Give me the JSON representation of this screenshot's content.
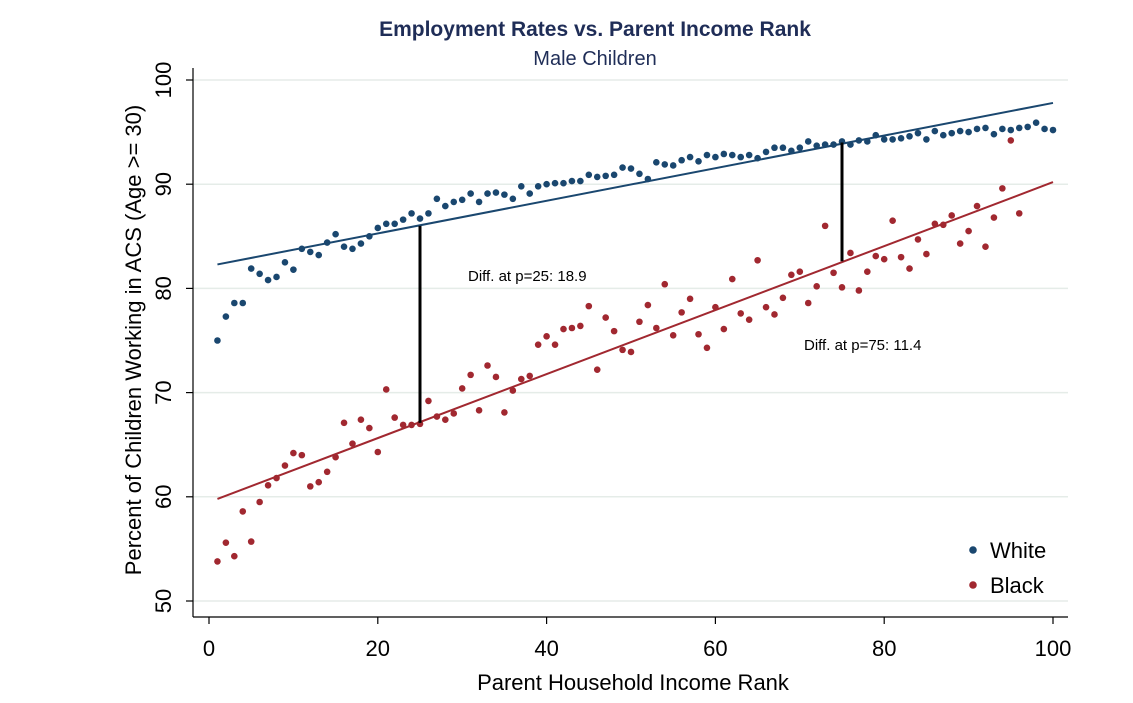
{
  "chart_data": {
    "type": "scatter",
    "title": "Employment Rates vs. Parent Income Rank",
    "subtitle": "Male Children",
    "xlabel": "Parent Household Income Rank",
    "ylabel": "Percent of Children Working in ACS (Age >= 30)",
    "xlim": [
      0,
      100
    ],
    "ylim": [
      50,
      100
    ],
    "xticks": [
      0,
      20,
      40,
      60,
      80,
      100
    ],
    "yticks": [
      50,
      60,
      70,
      80,
      90,
      100
    ],
    "grid": true,
    "legend_position": "bottom-right",
    "annotations": [
      {
        "text": "Diff. at p=25: 18.9",
        "x": 25,
        "y": 78,
        "from": 67.1,
        "to": 86.0
      },
      {
        "text": "Diff. at p=75: 11.4",
        "x": 75,
        "y": 72,
        "from": 82.6,
        "to": 94.0
      }
    ],
    "series": [
      {
        "name": "White",
        "color": "#1a476f",
        "fit": [
          [
            1,
            82.3
          ],
          [
            100,
            97.8
          ]
        ],
        "x": [
          1,
          2,
          3,
          4,
          5,
          6,
          7,
          8,
          9,
          10,
          11,
          12,
          13,
          14,
          15,
          16,
          17,
          18,
          19,
          20,
          21,
          22,
          23,
          24,
          25,
          26,
          27,
          28,
          29,
          30,
          31,
          32,
          33,
          34,
          35,
          36,
          37,
          38,
          39,
          40,
          41,
          42,
          43,
          44,
          45,
          46,
          47,
          48,
          49,
          50,
          51,
          52,
          53,
          54,
          55,
          56,
          57,
          58,
          59,
          60,
          61,
          62,
          63,
          64,
          65,
          66,
          67,
          68,
          69,
          70,
          71,
          72,
          73,
          74,
          75,
          76,
          77,
          78,
          79,
          80,
          81,
          82,
          83,
          84,
          85,
          86,
          87,
          88,
          89,
          90,
          91,
          92,
          93,
          94,
          95,
          96,
          97,
          98,
          99,
          100
        ],
        "y": [
          75.0,
          77.3,
          78.6,
          78.6,
          81.9,
          81.4,
          80.8,
          81.1,
          82.5,
          81.8,
          83.8,
          83.5,
          83.2,
          84.4,
          85.2,
          84.0,
          83.8,
          84.3,
          85.0,
          85.8,
          86.2,
          86.2,
          86.6,
          87.2,
          86.7,
          87.2,
          88.6,
          87.9,
          88.3,
          88.5,
          89.1,
          88.3,
          89.1,
          89.2,
          89.0,
          88.6,
          89.8,
          89.1,
          89.8,
          90.0,
          90.1,
          90.1,
          90.3,
          90.3,
          90.9,
          90.7,
          90.8,
          90.9,
          91.6,
          91.5,
          91.0,
          90.5,
          92.1,
          91.9,
          91.8,
          92.3,
          92.6,
          92.2,
          92.8,
          92.6,
          92.9,
          92.8,
          92.6,
          92.8,
          92.5,
          93.1,
          93.5,
          93.5,
          93.2,
          93.5,
          94.1,
          93.7,
          93.8,
          93.8,
          94.1,
          93.8,
          94.2,
          94.1,
          94.7,
          94.3,
          94.3,
          94.4,
          94.6,
          94.9,
          94.3,
          95.1,
          94.7,
          94.9,
          95.1,
          95.0,
          95.3,
          95.4,
          94.8,
          95.3,
          95.2,
          95.4,
          95.5,
          95.9,
          95.3,
          95.2
        ]
      },
      {
        "name": "Black",
        "color": "#a12830",
        "fit": [
          [
            1,
            59.8
          ],
          [
            100,
            90.2
          ]
        ],
        "x": [
          1,
          2,
          3,
          4,
          5,
          6,
          7,
          8,
          9,
          10,
          11,
          12,
          13,
          14,
          15,
          16,
          17,
          18,
          19,
          20,
          21,
          22,
          23,
          24,
          25,
          26,
          27,
          28,
          29,
          30,
          31,
          32,
          33,
          34,
          35,
          36,
          37,
          38,
          39,
          40,
          41,
          42,
          43,
          44,
          45,
          46,
          47,
          48,
          49,
          50,
          51,
          52,
          53,
          54,
          55,
          56,
          57,
          58,
          59,
          60,
          61,
          62,
          63,
          64,
          65,
          66,
          67,
          68,
          69,
          70,
          71,
          72,
          73,
          74,
          75,
          76,
          77,
          78,
          79,
          80,
          81,
          82,
          83,
          84,
          85,
          86,
          87,
          88,
          89,
          90,
          91,
          92,
          93,
          94,
          95,
          96
        ],
        "y": [
          53.8,
          55.6,
          54.3,
          58.6,
          55.7,
          59.5,
          61.1,
          61.8,
          63.0,
          64.2,
          64.0,
          61.0,
          61.4,
          62.4,
          63.8,
          67.1,
          65.1,
          67.4,
          66.6,
          64.3,
          70.3,
          67.6,
          66.9,
          66.9,
          67.0,
          69.2,
          67.7,
          67.4,
          68.0,
          70.4,
          71.7,
          68.3,
          72.6,
          71.5,
          68.1,
          70.2,
          71.3,
          71.6,
          74.6,
          75.4,
          74.6,
          76.1,
          76.2,
          76.4,
          78.3,
          72.2,
          77.2,
          75.9,
          74.1,
          73.9,
          76.8,
          78.4,
          76.2,
          80.4,
          75.5,
          77.7,
          79.0,
          75.6,
          74.3,
          78.2,
          76.1,
          80.9,
          77.6,
          77.0,
          82.7,
          78.2,
          77.5,
          79.1,
          81.3,
          81.6,
          78.6,
          80.2,
          86.0,
          81.5,
          80.1,
          83.4,
          79.8,
          81.6,
          83.1,
          82.8,
          86.5,
          83.0,
          81.9,
          84.7,
          83.3,
          86.2,
          86.1,
          87.0,
          84.3,
          85.5,
          87.9,
          84.0,
          86.8,
          89.6,
          94.2,
          87.2
        ]
      }
    ]
  }
}
